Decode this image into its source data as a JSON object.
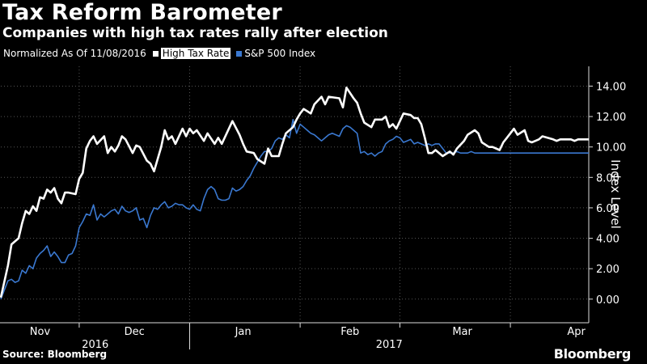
{
  "header": {
    "title": "Tax Reform Barometer",
    "subtitle": "Companies with high tax rates rally after election"
  },
  "legend": {
    "note": "Normalized As Of 11/08/2016",
    "items": [
      {
        "label": "High Tax Rate",
        "color": "#ffffff",
        "highlighted": true
      },
      {
        "label": "S&P 500 Index",
        "color": "#3a78d0",
        "highlighted": false
      }
    ]
  },
  "footer": {
    "source": "Source: Bloomberg",
    "brand": "Bloomberg"
  },
  "chart_data": {
    "type": "line",
    "title": "Tax Reform Barometer",
    "subtitle": "Companies with high tax rates rally after election",
    "xlabel": "",
    "ylabel": "Index Level",
    "ylim": [
      -1.5,
      15.3
    ],
    "yticks": [
      0,
      2,
      4,
      6,
      8,
      10,
      12,
      14
    ],
    "ytick_labels": [
      "0.00",
      "2.00",
      "4.00",
      "6.00",
      "8.00",
      "10.00",
      "12.00",
      "14.00"
    ],
    "grid": true,
    "legend_position": "top-left",
    "x_month_labels": [
      {
        "label": "Nov",
        "pos": 11
      },
      {
        "label": "Dec",
        "pos": 37.5
      },
      {
        "label": "Jan",
        "pos": 68
      },
      {
        "label": "Feb",
        "pos": 98
      },
      {
        "label": "Mar",
        "pos": 129.5
      },
      {
        "label": "Apr",
        "pos": 161.5
      }
    ],
    "x_month_boundaries": [
      22,
      53,
      84,
      112,
      143
    ],
    "x_year_labels": [
      {
        "label": "2016",
        "pos": 26.5
      },
      {
        "label": "2017",
        "pos": 109
      }
    ],
    "x_year_boundary": 53,
    "x_range": [
      0,
      165
    ],
    "series": [
      {
        "name": "High Tax Rate",
        "color": "#ffffff",
        "x": [
          0,
          2,
          3,
          5,
          6,
          7,
          8,
          9,
          10,
          11,
          12,
          13,
          14,
          15,
          16,
          17,
          18,
          19,
          21,
          22,
          23,
          24,
          25,
          26,
          27,
          29,
          30,
          31,
          32,
          33,
          34,
          35,
          37,
          38,
          39,
          41,
          42,
          43,
          45,
          46,
          47,
          48,
          49,
          51,
          52,
          53,
          54,
          55,
          57,
          58,
          60,
          61,
          62,
          64,
          65,
          67,
          68,
          69,
          71,
          72,
          74,
          75,
          76,
          78,
          79,
          80,
          82,
          83,
          84,
          85,
          87,
          88,
          90,
          91,
          92,
          95,
          96,
          97,
          99,
          100,
          101,
          102,
          104,
          105,
          107,
          108,
          109,
          110,
          111,
          113,
          115,
          116,
          117,
          118,
          119,
          120,
          121,
          122,
          124,
          126,
          127,
          128,
          130,
          131,
          133,
          134,
          135,
          137,
          138,
          140,
          141,
          142,
          144,
          145,
          147,
          148,
          149,
          150,
          151,
          152,
          155,
          156,
          157,
          158,
          159,
          160,
          161,
          162,
          163,
          164,
          165
        ],
        "values": [
          0.1,
          2.2,
          3.6,
          4.0,
          5.0,
          5.8,
          5.6,
          6.1,
          5.8,
          6.7,
          6.6,
          7.2,
          7.0,
          7.3,
          6.6,
          6.3,
          7.0,
          7.0,
          6.9,
          7.9,
          8.3,
          9.9,
          10.4,
          10.7,
          10.2,
          10.7,
          9.6,
          10.0,
          9.7,
          10.1,
          10.7,
          10.5,
          9.6,
          10.1,
          10.0,
          9.1,
          8.9,
          8.4,
          10.0,
          11.1,
          10.5,
          10.7,
          10.2,
          11.2,
          10.7,
          11.2,
          10.9,
          11.1,
          10.4,
          10.9,
          10.2,
          10.6,
          10.2,
          11.2,
          11.7,
          10.8,
          10.2,
          9.7,
          9.6,
          9.2,
          8.9,
          9.9,
          9.4,
          9.4,
          10.2,
          10.9,
          11.3,
          11.8,
          12.2,
          12.5,
          12.2,
          12.8,
          13.3,
          12.8,
          13.3,
          13.2,
          12.6,
          13.9,
          13.2,
          12.9,
          12.2,
          11.6,
          11.3,
          11.8,
          11.8,
          12.0,
          11.3,
          11.5,
          11.2,
          12.2,
          12.1,
          11.9,
          11.9,
          11.5,
          10.6,
          9.6,
          9.6,
          9.8,
          9.4,
          9.7,
          9.5,
          9.9,
          10.4,
          10.8,
          11.1,
          10.9,
          10.3,
          10.0,
          10.0,
          9.8,
          10.3,
          10.6,
          11.2,
          10.8,
          11.1,
          10.4,
          10.3,
          10.4,
          10.5,
          10.7,
          10.5,
          10.4,
          10.5,
          10.5,
          10.5,
          10.5,
          10.4,
          10.5,
          10.5,
          10.5,
          10.5
        ]
      },
      {
        "name": "S&P 500 Index",
        "color": "#3a78d0",
        "x": [
          0,
          2,
          3,
          4,
          5,
          6,
          7,
          8,
          9,
          10,
          11,
          12,
          13,
          14,
          15,
          16,
          17,
          18,
          19,
          20,
          21,
          22,
          23,
          24,
          25,
          26,
          27,
          28,
          29,
          30,
          31,
          32,
          33,
          34,
          35,
          36,
          37,
          38,
          39,
          40,
          41,
          42,
          43,
          44,
          45,
          46,
          47,
          48,
          49,
          50,
          51,
          52,
          53,
          54,
          55,
          56,
          57,
          58,
          59,
          60,
          61,
          62,
          63,
          64,
          65,
          66,
          67,
          68,
          69,
          70,
          71,
          72,
          73,
          74,
          75,
          76,
          77,
          78,
          79,
          80,
          81,
          82,
          83,
          84,
          85,
          86,
          87,
          88,
          89,
          90,
          91,
          92,
          93,
          94,
          95,
          96,
          97,
          98,
          99,
          100,
          101,
          102,
          103,
          104,
          105,
          106,
          107,
          108,
          109,
          110,
          111,
          112,
          113,
          114,
          115,
          116,
          117,
          118,
          119,
          120,
          121,
          122,
          123,
          124,
          125,
          126,
          127,
          128,
          129,
          130,
          131,
          132,
          133,
          134,
          135,
          136,
          137,
          138,
          139,
          140,
          141,
          142,
          143,
          144,
          145,
          146,
          147,
          148,
          149,
          150,
          151,
          152,
          153,
          154,
          155,
          156,
          157,
          158,
          159,
          160,
          161,
          162,
          163,
          164,
          165
        ],
        "values": [
          0.0,
          1.2,
          1.3,
          1.1,
          1.2,
          1.9,
          1.7,
          2.2,
          2.0,
          2.7,
          3.0,
          3.2,
          3.5,
          2.8,
          3.1,
          2.8,
          2.4,
          2.4,
          2.9,
          3.0,
          3.5,
          4.7,
          5.1,
          5.6,
          5.5,
          6.2,
          5.2,
          5.6,
          5.4,
          5.6,
          5.8,
          5.9,
          5.6,
          6.1,
          5.8,
          5.7,
          5.8,
          6.0,
          5.2,
          5.3,
          4.7,
          5.5,
          6.0,
          5.9,
          6.2,
          6.4,
          6.0,
          6.1,
          6.3,
          6.2,
          6.2,
          6.0,
          5.9,
          6.2,
          5.9,
          5.8,
          6.6,
          7.2,
          7.4,
          7.2,
          6.6,
          6.5,
          6.5,
          6.6,
          7.3,
          7.1,
          7.2,
          7.4,
          7.8,
          8.1,
          8.6,
          9.0,
          9.4,
          9.7,
          9.7,
          9.9,
          10.4,
          10.6,
          10.5,
          10.8,
          10.6,
          11.8,
          10.9,
          11.5,
          11.3,
          11.1,
          10.9,
          10.8,
          10.6,
          10.4,
          10.6,
          10.8,
          10.9,
          10.8,
          10.7,
          11.2,
          11.4,
          11.3,
          11.1,
          10.9,
          9.6,
          9.7,
          9.5,
          9.6,
          9.4,
          9.6,
          9.7,
          10.2,
          10.4,
          10.5,
          10.7,
          10.6,
          10.3,
          10.4,
          10.5,
          10.2,
          10.3,
          10.2,
          10.1,
          10.2,
          10.1,
          10.2,
          10.2,
          9.9,
          9.6,
          9.6,
          9.6,
          9.7,
          9.6,
          9.6,
          9.6,
          9.7,
          9.6,
          9.6,
          9.6,
          9.6,
          9.6,
          9.6,
          9.6,
          9.6,
          9.6,
          9.6,
          9.6,
          9.6,
          9.6,
          9.6,
          9.6,
          9.6,
          9.6,
          9.6,
          9.6,
          9.6,
          9.6,
          9.6,
          9.6,
          9.6,
          9.6,
          9.6,
          9.6,
          9.6,
          9.6,
          9.6,
          9.6,
          9.6,
          9.6
        ]
      }
    ]
  }
}
